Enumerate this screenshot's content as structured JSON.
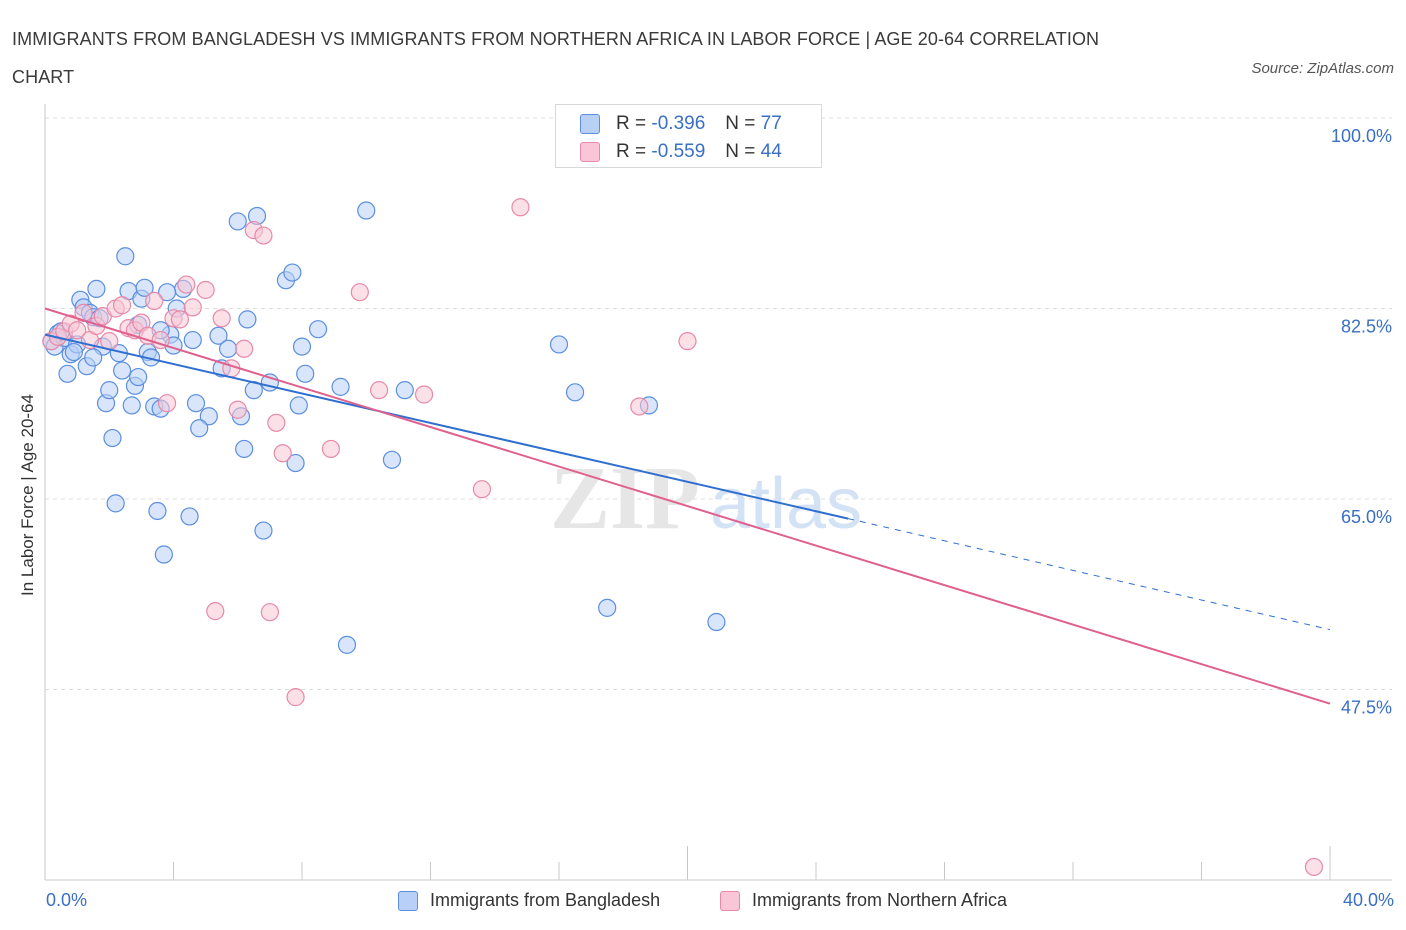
{
  "header": {
    "title": "IMMIGRANTS FROM BANGLADESH VS IMMIGRANTS FROM NORTHERN AFRICA IN LABOR FORCE | AGE 20-64 CORRELATION CHART",
    "source": "Source: ZipAtlas.com"
  },
  "legend": {
    "series": [
      {
        "r_label": "R =",
        "r_value": "-0.396",
        "n_label": "N =",
        "n_value": "77"
      },
      {
        "r_label": "R =",
        "r_value": "-0.559",
        "n_label": "N =",
        "n_value": "44"
      }
    ]
  },
  "colors": {
    "blue_fill": "#b8d0f5",
    "blue_stroke": "#5b8fe0",
    "blue_line": "#2f6fd0",
    "pink_fill": "#f8c6d6",
    "pink_stroke": "#e889a8",
    "pink_line": "#e0608e",
    "axis_text": "#3a6fc4",
    "grid": "#dcdcdc"
  },
  "chart_data": {
    "type": "scatter",
    "title": "IMMIGRANTS FROM BANGLADESH VS IMMIGRANTS FROM NORTHERN AFRICA IN LABOR FORCE | AGE 20-64 CORRELATION CHART",
    "xlabel": "",
    "ylabel": "In Labor Force | Age 20-64",
    "xlim": [
      0,
      40
    ],
    "ylim": [
      30,
      100
    ],
    "x_tick_labels": [
      "0.0%",
      "40.0%"
    ],
    "y_ticks": [
      100,
      82.5,
      65,
      47.5
    ],
    "y_tick_labels": [
      "100.0%",
      "82.5%",
      "65.0%",
      "47.5%"
    ],
    "series": [
      {
        "name": "Immigrants from Bangladesh",
        "points": [
          [
            0.2,
            79.5
          ],
          [
            0.4,
            80.2
          ],
          [
            0.3,
            79.0
          ],
          [
            0.6,
            79.8
          ],
          [
            0.5,
            80.4
          ],
          [
            0.8,
            78.3
          ],
          [
            0.7,
            76.5
          ],
          [
            1.0,
            79.2
          ],
          [
            1.1,
            83.3
          ],
          [
            1.2,
            82.6
          ],
          [
            1.4,
            82.1
          ],
          [
            1.5,
            81.7
          ],
          [
            1.6,
            84.3
          ],
          [
            1.3,
            77.2
          ],
          [
            1.7,
            81.6
          ],
          [
            1.8,
            79.0
          ],
          [
            1.9,
            73.8
          ],
          [
            2.0,
            75.0
          ],
          [
            2.1,
            70.6
          ],
          [
            2.2,
            64.6
          ],
          [
            2.4,
            76.8
          ],
          [
            2.5,
            87.3
          ],
          [
            2.6,
            84.1
          ],
          [
            2.7,
            73.6
          ],
          [
            2.8,
            75.4
          ],
          [
            2.9,
            76.2
          ],
          [
            3.0,
            83.4
          ],
          [
            3.1,
            84.4
          ],
          [
            3.2,
            78.5
          ],
          [
            3.3,
            78.0
          ],
          [
            3.4,
            73.5
          ],
          [
            3.5,
            63.9
          ],
          [
            3.6,
            73.3
          ],
          [
            3.7,
            59.9
          ],
          [
            3.9,
            80.1
          ],
          [
            4.0,
            79.1
          ],
          [
            4.1,
            82.5
          ],
          [
            4.3,
            84.3
          ],
          [
            4.5,
            63.4
          ],
          [
            4.6,
            79.6
          ],
          [
            4.7,
            73.8
          ],
          [
            5.1,
            72.6
          ],
          [
            5.4,
            80.0
          ],
          [
            5.7,
            78.8
          ],
          [
            6.0,
            90.5
          ],
          [
            6.1,
            72.6
          ],
          [
            6.2,
            69.6
          ],
          [
            6.3,
            81.5
          ],
          [
            6.6,
            91.0
          ],
          [
            6.8,
            62.1
          ],
          [
            7.0,
            75.7
          ],
          [
            7.5,
            85.1
          ],
          [
            7.7,
            85.8
          ],
          [
            7.8,
            68.3
          ],
          [
            7.9,
            73.6
          ],
          [
            8.0,
            79.0
          ],
          [
            8.1,
            76.5
          ],
          [
            8.5,
            80.6
          ],
          [
            9.2,
            75.3
          ],
          [
            9.4,
            51.6
          ],
          [
            10.0,
            91.5
          ],
          [
            10.8,
            68.6
          ],
          [
            11.2,
            75.0
          ],
          [
            16.0,
            79.2
          ],
          [
            16.5,
            74.8
          ],
          [
            17.5,
            55.0
          ],
          [
            18.8,
            73.6
          ],
          [
            20.9,
            53.7
          ],
          [
            2.9,
            81.0
          ],
          [
            3.8,
            84.0
          ],
          [
            1.5,
            78.0
          ],
          [
            0.9,
            78.5
          ],
          [
            6.5,
            75.0
          ],
          [
            4.8,
            71.5
          ],
          [
            2.3,
            78.4
          ],
          [
            5.5,
            77.0
          ],
          [
            3.6,
            80.5
          ]
        ]
      },
      {
        "name": "Immigrants from Northern Africa",
        "points": [
          [
            0.2,
            79.5
          ],
          [
            0.4,
            79.9
          ],
          [
            0.6,
            80.4
          ],
          [
            0.8,
            81.1
          ],
          [
            1.0,
            80.5
          ],
          [
            1.2,
            82.1
          ],
          [
            1.4,
            79.6
          ],
          [
            1.6,
            80.9
          ],
          [
            1.8,
            81.8
          ],
          [
            2.0,
            79.5
          ],
          [
            2.2,
            82.5
          ],
          [
            2.4,
            82.8
          ],
          [
            2.6,
            80.7
          ],
          [
            2.8,
            80.5
          ],
          [
            3.0,
            81.2
          ],
          [
            3.2,
            80.0
          ],
          [
            3.4,
            83.2
          ],
          [
            3.6,
            79.6
          ],
          [
            3.8,
            73.8
          ],
          [
            4.0,
            81.6
          ],
          [
            4.2,
            81.5
          ],
          [
            4.4,
            84.7
          ],
          [
            4.6,
            82.6
          ],
          [
            5.0,
            84.2
          ],
          [
            5.3,
            54.7
          ],
          [
            5.5,
            81.6
          ],
          [
            5.8,
            77.0
          ],
          [
            6.0,
            73.2
          ],
          [
            6.2,
            78.8
          ],
          [
            6.5,
            89.7
          ],
          [
            6.8,
            89.2
          ],
          [
            7.0,
            54.6
          ],
          [
            7.2,
            72.0
          ],
          [
            7.4,
            69.2
          ],
          [
            7.8,
            46.8
          ],
          [
            8.9,
            69.6
          ],
          [
            9.8,
            84.0
          ],
          [
            10.4,
            75.0
          ],
          [
            11.8,
            74.6
          ],
          [
            13.6,
            65.9
          ],
          [
            14.8,
            91.8
          ],
          [
            18.5,
            73.5
          ],
          [
            20.0,
            79.5
          ],
          [
            39.5,
            31.2
          ]
        ]
      }
    ],
    "trendlines": [
      {
        "series": "Immigrants from Bangladesh",
        "x0": 0,
        "y0": 80.1,
        "x1": 25,
        "y1": 63.2,
        "dashed_to_x": 40,
        "dashed_to_y": 53.0
      },
      {
        "series": "Immigrants from Northern Africa",
        "x0": 0,
        "y0": 82.5,
        "x1": 40,
        "y1": 46.2
      }
    ]
  },
  "bottom_legend": {
    "items": [
      "Immigrants from Bangladesh",
      "Immigrants from Northern Africa"
    ]
  },
  "watermark": "ZIPatlas"
}
